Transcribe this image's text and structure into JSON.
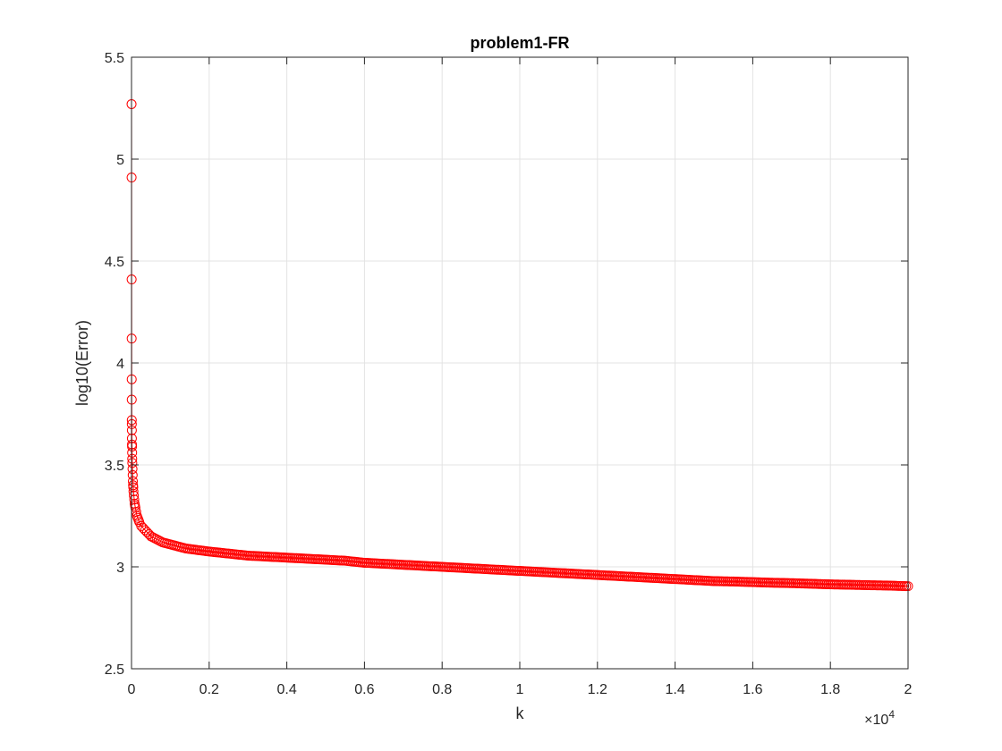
{
  "chart_data": {
    "type": "scatter",
    "title": "problem1-FR",
    "xlabel": "k",
    "ylabel": "log10(Error)",
    "x_multiplier_label": "×10",
    "x_multiplier_exponent": "4",
    "xlim": [
      0,
      20000
    ],
    "ylim": [
      2.5,
      5.5
    ],
    "x_ticks": [
      0,
      2000,
      4000,
      6000,
      8000,
      10000,
      12000,
      14000,
      16000,
      18000,
      20000
    ],
    "x_tick_labels": [
      "0",
      "0.2",
      "0.4",
      "0.6",
      "0.8",
      "1",
      "1.2",
      "1.4",
      "1.6",
      "1.8",
      "2"
    ],
    "y_ticks": [
      2.5,
      3,
      3.5,
      4,
      4.5,
      5,
      5.5
    ],
    "y_tick_labels": [
      "2.5",
      "3",
      "3.5",
      "4",
      "4.5",
      "5",
      "5.5"
    ],
    "grid": true,
    "marker": "circle-open",
    "connect_points": true,
    "series_color": "#ff0000",
    "series": [
      {
        "x": [
          1,
          2,
          3,
          4,
          5,
          6,
          7,
          8,
          9,
          10,
          12,
          14,
          16,
          18,
          20,
          25,
          30,
          35,
          40,
          45,
          50,
          60,
          70,
          80,
          90,
          100,
          120,
          140,
          160,
          180,
          200,
          250,
          300,
          350,
          400,
          500,
          600,
          700,
          800,
          1000,
          1200,
          1400,
          1600,
          1800,
          2000,
          2500,
          3000,
          3500,
          4000,
          4500,
          5000,
          5500,
          6000,
          6500,
          7000,
          7500,
          8000,
          8500,
          9000,
          9500,
          10000,
          10500,
          11000,
          11500,
          12000,
          12500,
          13000,
          13500,
          14000,
          14500,
          15000,
          15500,
          16000,
          16500,
          17000,
          17500,
          18000,
          18500,
          19000,
          19500,
          20000
        ],
        "y": [
          5.27,
          4.91,
          4.41,
          4.12,
          3.92,
          3.82,
          3.72,
          3.7,
          3.67,
          3.63,
          3.6,
          3.59,
          3.56,
          3.53,
          3.51,
          3.48,
          3.45,
          3.42,
          3.4,
          3.39,
          3.37,
          3.35,
          3.33,
          3.31,
          3.3,
          3.29,
          3.27,
          3.25,
          3.24,
          3.23,
          3.22,
          3.2,
          3.19,
          3.18,
          3.17,
          3.15,
          3.14,
          3.13,
          3.12,
          3.11,
          3.1,
          3.09,
          3.085,
          3.08,
          3.075,
          3.065,
          3.055,
          3.05,
          3.045,
          3.04,
          3.035,
          3.03,
          3.02,
          3.015,
          3.01,
          3.005,
          3.0,
          2.995,
          2.99,
          2.985,
          2.98,
          2.975,
          2.97,
          2.965,
          2.96,
          2.955,
          2.95,
          2.945,
          2.94,
          2.935,
          2.93,
          2.928,
          2.925,
          2.922,
          2.92,
          2.917,
          2.914,
          2.912,
          2.91,
          2.908,
          2.905
        ]
      }
    ]
  }
}
